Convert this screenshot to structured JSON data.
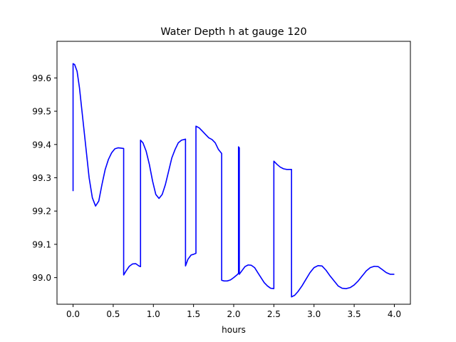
{
  "chart_data": {
    "type": "line",
    "title": "Water Depth h at gauge 120",
    "xlabel": "hours",
    "ylabel": "",
    "xlim": [
      -0.2,
      4.2
    ],
    "ylim": [
      98.92,
      99.71
    ],
    "xticks": [
      0.0,
      0.5,
      1.0,
      1.5,
      2.0,
      2.5,
      3.0,
      3.5,
      4.0
    ],
    "xtick_labels": [
      "0.0",
      "0.5",
      "1.0",
      "1.5",
      "2.0",
      "2.5",
      "3.0",
      "3.5",
      "4.0"
    ],
    "yticks": [
      99.0,
      99.1,
      99.2,
      99.3,
      99.4,
      99.5,
      99.6
    ],
    "ytick_labels": [
      "99.0",
      "99.1",
      "99.2",
      "99.3",
      "99.4",
      "99.5",
      "99.6"
    ],
    "grid": false,
    "legend": "none",
    "series": [
      {
        "color": "#0000ff",
        "x": [
          0.0,
          0.0,
          0.02,
          0.05,
          0.08,
          0.12,
          0.16,
          0.2,
          0.24,
          0.28,
          0.32,
          0.36,
          0.4,
          0.44,
          0.48,
          0.52,
          0.56,
          0.6,
          0.63,
          0.63,
          0.66,
          0.7,
          0.74,
          0.78,
          0.82,
          0.84,
          0.84,
          0.87,
          0.91,
          0.95,
          0.99,
          1.03,
          1.07,
          1.11,
          1.15,
          1.19,
          1.23,
          1.27,
          1.31,
          1.35,
          1.4,
          1.4,
          1.43,
          1.47,
          1.5,
          1.53,
          1.53,
          1.57,
          1.61,
          1.65,
          1.69,
          1.73,
          1.77,
          1.81,
          1.85,
          1.85,
          1.88,
          1.92,
          1.96,
          2.0,
          2.04,
          2.06,
          2.06,
          2.07,
          2.07,
          2.1,
          2.14,
          2.18,
          2.22,
          2.26,
          2.3,
          2.34,
          2.38,
          2.42,
          2.46,
          2.5,
          2.5,
          2.54,
          2.58,
          2.62,
          2.66,
          2.7,
          2.72,
          2.72,
          2.76,
          2.8,
          2.85,
          2.9,
          2.95,
          3.0,
          3.05,
          3.1,
          3.15,
          3.2,
          3.25,
          3.3,
          3.35,
          3.4,
          3.45,
          3.5,
          3.55,
          3.6,
          3.65,
          3.7,
          3.75,
          3.8,
          3.85,
          3.9,
          3.95,
          4.0
        ],
        "y": [
          99.26,
          99.643,
          99.64,
          99.62,
          99.57,
          99.48,
          99.39,
          99.3,
          99.24,
          99.215,
          99.23,
          99.28,
          99.325,
          99.355,
          99.375,
          99.387,
          99.39,
          99.389,
          99.388,
          99.008,
          99.02,
          99.034,
          99.041,
          99.042,
          99.035,
          99.033,
          99.413,
          99.405,
          99.38,
          99.34,
          99.29,
          99.25,
          99.238,
          99.25,
          99.28,
          99.32,
          99.36,
          99.385,
          99.405,
          99.413,
          99.416,
          99.035,
          99.055,
          99.068,
          99.07,
          99.073,
          99.455,
          99.45,
          99.44,
          99.43,
          99.42,
          99.415,
          99.405,
          99.385,
          99.373,
          98.992,
          98.99,
          98.99,
          98.993,
          99.0,
          99.008,
          99.013,
          99.393,
          99.39,
          99.01,
          99.02,
          99.033,
          99.038,
          99.037,
          99.03,
          99.015,
          99.0,
          98.985,
          98.975,
          98.968,
          98.967,
          99.35,
          99.34,
          99.332,
          99.327,
          99.325,
          99.325,
          99.325,
          98.942,
          98.947,
          98.958,
          98.975,
          98.995,
          99.015,
          99.03,
          99.036,
          99.035,
          99.022,
          99.005,
          98.99,
          98.975,
          98.968,
          98.967,
          98.97,
          98.978,
          98.99,
          99.005,
          99.02,
          99.03,
          99.034,
          99.033,
          99.024,
          99.015,
          99.01,
          99.01
        ]
      }
    ]
  }
}
